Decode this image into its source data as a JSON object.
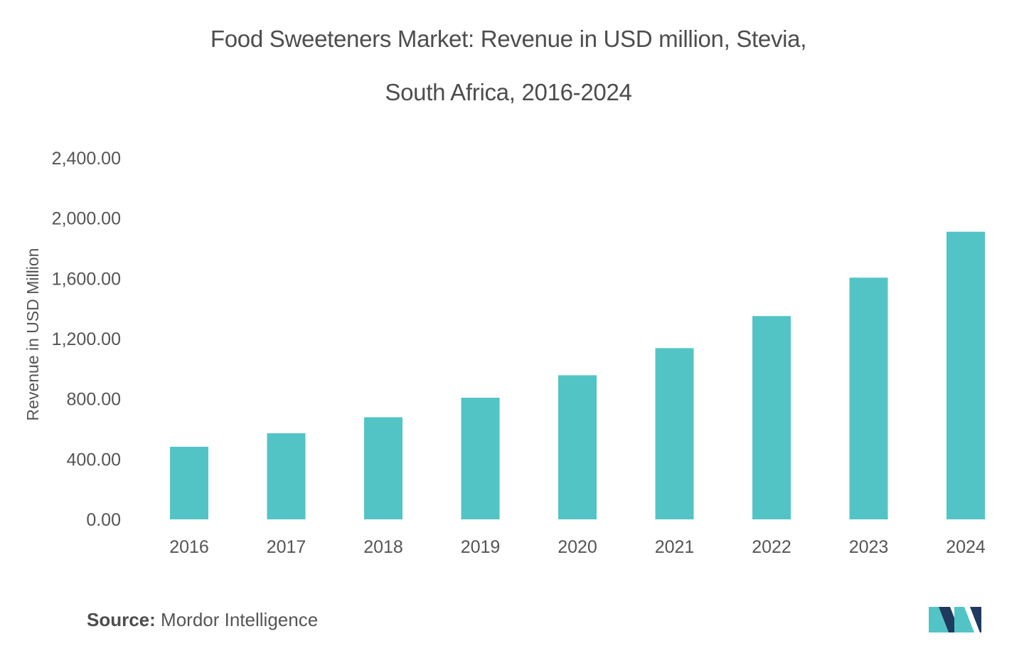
{
  "chart_data": {
    "type": "bar",
    "title_line1": "Food Sweeteners Market: Revenue in USD million, Stevia,",
    "title_line2": "South Africa, 2016-2024",
    "xlabel": "",
    "ylabel": "Revenue in USD Million",
    "categories": [
      "2016",
      "2017",
      "2018",
      "2019",
      "2020",
      "2021",
      "2022",
      "2023",
      "2024"
    ],
    "values": [
      482,
      572,
      678,
      808,
      957,
      1137,
      1350,
      1605,
      1910
    ],
    "ylim": [
      0,
      2400
    ],
    "yticks": [
      0,
      400,
      800,
      1200,
      1600,
      2000,
      2400
    ],
    "ytick_labels": [
      "0.00",
      "400.00",
      "800.00",
      "1,200.00",
      "1,600.00",
      "2,000.00",
      "2,400.00"
    ],
    "grid": false,
    "bar_color": "#52c4c6"
  },
  "source": {
    "label": "Source:",
    "text": "Mordor Intelligence"
  },
  "logo": {
    "icon": "mordor-intelligence-logo-icon",
    "colors": [
      "#1e3a5f",
      "#52c4c6"
    ]
  }
}
